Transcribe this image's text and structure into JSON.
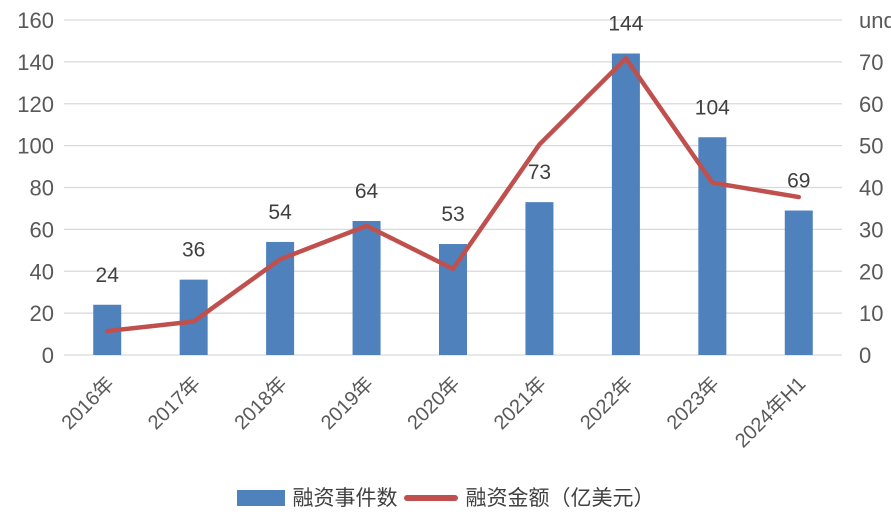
{
  "chart_data": {
    "type": "combo",
    "title": "",
    "categories": [
      "2016年",
      "2017年",
      "2018年",
      "2019年",
      "2020年",
      "2021年",
      "2022年",
      "2023年",
      "2024年H1"
    ],
    "series": [
      {
        "name": "融资事件数",
        "type": "bar",
        "axis": "left",
        "color": "#4F81BD",
        "values": [
          24,
          36,
          54,
          64,
          53,
          73,
          144,
          104,
          69
        ],
        "data_labels": [
          24,
          36,
          54,
          64,
          53,
          73,
          144,
          104,
          69
        ]
      },
      {
        "name": "融资金额（亿美元）",
        "type": "line",
        "axis": "right",
        "color": "#C0504D",
        "values": [
          5,
          7,
          20,
          27,
          18,
          44,
          62,
          36,
          33
        ]
      }
    ],
    "left_axis": {
      "min": 0,
      "max": 160,
      "step": 20,
      "ticks": [
        0,
        20,
        40,
        60,
        80,
        100,
        120,
        140,
        160
      ]
    },
    "right_axis": {
      "min": 0,
      "max": 70,
      "step": 10,
      "ticks": [
        0,
        10,
        20,
        30,
        40,
        50,
        60,
        70
      ]
    },
    "grid": "horizontal",
    "legend_position": "bottom",
    "x_label_rotation": -45,
    "colors": {
      "grid": "#D9D9D9",
      "tick_label": "#595959",
      "data_label": "#404040",
      "background": "#FFFFFF"
    }
  }
}
